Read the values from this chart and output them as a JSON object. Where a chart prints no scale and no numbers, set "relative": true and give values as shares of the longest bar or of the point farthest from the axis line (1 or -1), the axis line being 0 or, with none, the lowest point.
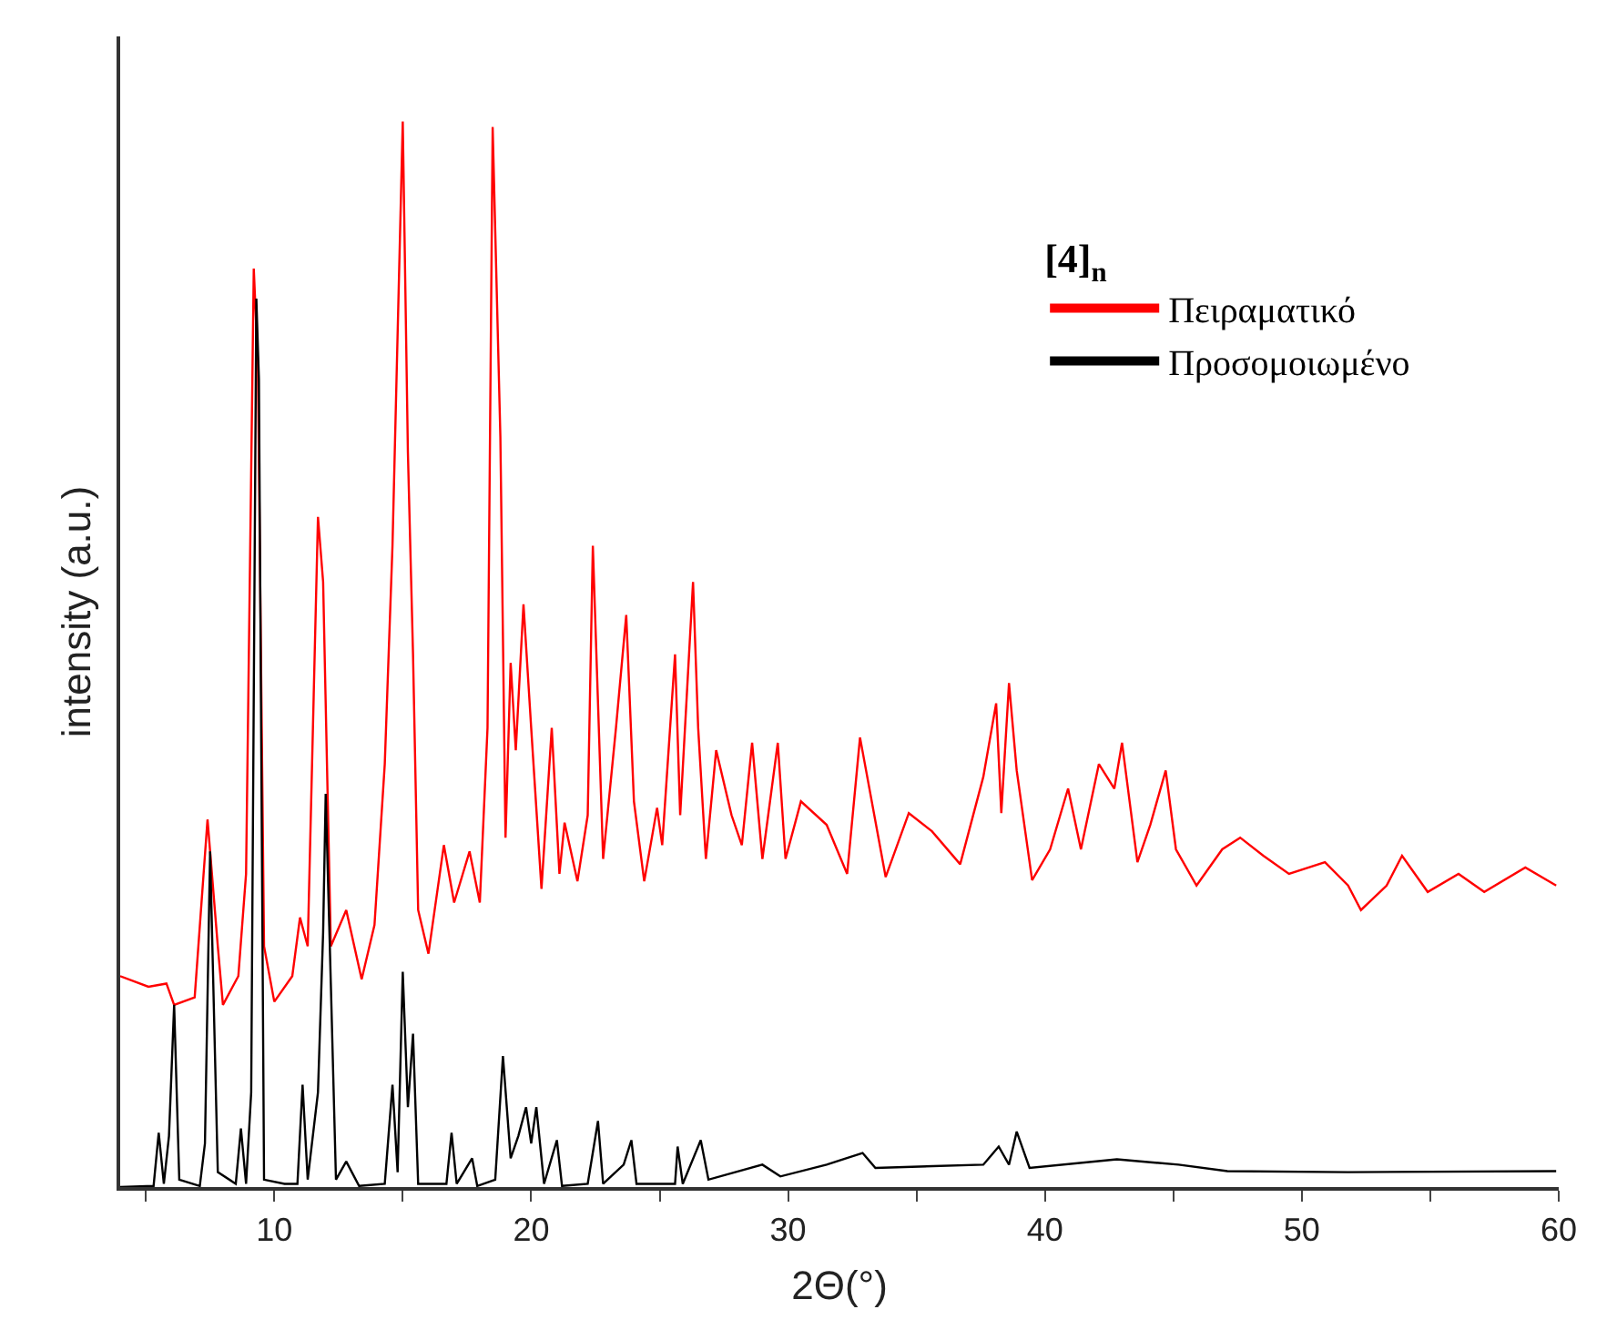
{
  "chart_data": {
    "type": "line",
    "relative": true,
    "xlabel": "2Θ(°)",
    "ylabel": "intensity (a.u.)",
    "legend_title": "[4]$_{n}$",
    "legend": "top right",
    "tick_labels": "x",
    "marker": "none",
    "line_style": "solid",
    "xlim": [
      4,
      60
    ],
    "xticks": [
      {
        "value": 5,
        "label": null
      },
      10,
      {
        "value": 15,
        "label": null
      },
      20,
      {
        "value": 25,
        "label": null
      },
      30,
      {
        "value": 35,
        "label": null
      },
      40,
      {
        "value": 45,
        "label": null
      },
      50,
      {
        "value": 55,
        "label": null
      },
      60
    ],
    "series": [
      {
        "name": "Πειραματικό",
        "color": "#ff0000",
        "x": [
          4.0,
          5.1,
          5.8,
          6.1,
          6.9,
          7.4,
          7.8,
          8.0,
          8.6,
          8.9,
          9.2,
          9.36,
          9.6,
          10.0,
          10.7,
          11.0,
          11.3,
          11.7,
          11.9,
          12.2,
          12.8,
          13.4,
          13.9,
          14.3,
          14.6,
          15.0,
          15.2,
          15.4,
          15.6,
          16.0,
          16.6,
          17.0,
          17.6,
          18.0,
          18.3,
          18.5,
          18.8,
          19.0,
          19.2,
          19.4,
          19.7,
          20.0,
          20.4,
          20.8,
          21.1,
          21.3,
          21.8,
          22.2,
          22.4,
          22.8,
          23.3,
          23.7,
          24.0,
          24.4,
          24.9,
          25.1,
          25.6,
          25.8,
          26.3,
          26.5,
          26.8,
          27.2,
          27.8,
          28.2,
          28.6,
          29.0,
          29.6,
          29.9,
          30.5,
          31.5,
          32.3,
          32.8,
          33.8,
          34.7,
          35.6,
          36.7,
          37.6,
          38.1,
          38.3,
          38.6,
          38.9,
          39.5,
          40.2,
          40.9,
          41.4,
          42.1,
          42.7,
          43.0,
          43.6,
          44.1,
          44.7,
          45.1,
          45.9,
          46.9,
          47.6,
          48.5,
          49.5,
          50.9,
          51.8,
          52.3,
          53.3,
          53.9,
          54.9,
          56.1,
          57.1,
          58.7,
          59.9
        ],
        "values": [
          0.198,
          0.188,
          0.191,
          0.171,
          0.178,
          0.345,
          0.226,
          0.171,
          0.198,
          0.294,
          0.862,
          0.773,
          0.226,
          0.174,
          0.198,
          0.253,
          0.226,
          0.629,
          0.568,
          0.226,
          0.26,
          0.195,
          0.246,
          0.397,
          0.602,
          1,
          0.69,
          0.5,
          0.26,
          0.219,
          0.321,
          0.267,
          0.315,
          0.267,
          0.431,
          0.995,
          0.704,
          0.328,
          0.492,
          0.41,
          0.547,
          0.431,
          0.28,
          0.431,
          0.294,
          0.342,
          0.287,
          0.349,
          0.602,
          0.308,
          0.431,
          0.537,
          0.362,
          0.287,
          0.356,
          0.321,
          0.5,
          0.349,
          0.568,
          0.431,
          0.308,
          0.41,
          0.349,
          0.321,
          0.417,
          0.308,
          0.417,
          0.308,
          0.362,
          0.34,
          0.294,
          0.422,
          0.291,
          0.351,
          0.334,
          0.303,
          0.385,
          0.454,
          0.351,
          0.473,
          0.391,
          0.288,
          0.317,
          0.374,
          0.317,
          0.397,
          0.374,
          0.417,
          0.305,
          0.34,
          0.391,
          0.317,
          0.283,
          0.317,
          0.328,
          0.311,
          0.294,
          0.305,
          0.283,
          0.26,
          0.283,
          0.311,
          0.277,
          0.294,
          0.277,
          0.3,
          0.283
        ]
      },
      {
        "name": "Προσομοιωμένο",
        "color": "#000000",
        "x": [
          4.0,
          5.3,
          5.5,
          5.7,
          5.9,
          6.1,
          6.3,
          7.1,
          7.3,
          7.5,
          7.8,
          8.5,
          8.7,
          8.9,
          9.1,
          9.3,
          9.4,
          9.6,
          10.4,
          10.9,
          11.1,
          11.3,
          11.7,
          11.9,
          12.0,
          12.2,
          12.4,
          12.8,
          13.3,
          14.3,
          14.6,
          14.8,
          15.0,
          15.2,
          15.4,
          15.6,
          16.7,
          16.9,
          17.1,
          17.7,
          17.9,
          18.6,
          18.9,
          19.2,
          19.5,
          19.8,
          20.0,
          20.2,
          20.5,
          21.0,
          21.2,
          22.2,
          22.6,
          22.8,
          23.6,
          23.9,
          24.1,
          25.6,
          25.7,
          25.9,
          26.6,
          26.9,
          29.0,
          29.7,
          31.5,
          32.9,
          33.4,
          37.6,
          38.2,
          38.6,
          38.9,
          39.4,
          42.8,
          45.2,
          47.1,
          51.8,
          59.9
        ],
        "values": [
          0,
          0.001,
          0.051,
          0.003,
          0.048,
          0.171,
          0.007,
          0.001,
          0.041,
          0.315,
          0.014,
          0.003,
          0.055,
          0.003,
          0.089,
          0.834,
          0.759,
          0.007,
          0.003,
          0.003,
          0.096,
          0.007,
          0.089,
          0.239,
          0.369,
          0.191,
          0.007,
          0.024,
          0.001,
          0.003,
          0.096,
          0.014,
          0.202,
          0.075,
          0.144,
          0.003,
          0.003,
          0.051,
          0.003,
          0.027,
          0.001,
          0.007,
          0.123,
          0.027,
          0.048,
          0.075,
          0.041,
          0.075,
          0.003,
          0.044,
          0.001,
          0.003,
          0.062,
          0.003,
          0.021,
          0.044,
          0.003,
          0.003,
          0.038,
          0.003,
          0.044,
          0.007,
          0.021,
          0.01,
          0.021,
          0.032,
          0.018,
          0.021,
          0.038,
          0.021,
          0.052,
          0.018,
          0.026,
          0.021,
          0.015,
          0.014,
          0.015
        ]
      }
    ]
  }
}
